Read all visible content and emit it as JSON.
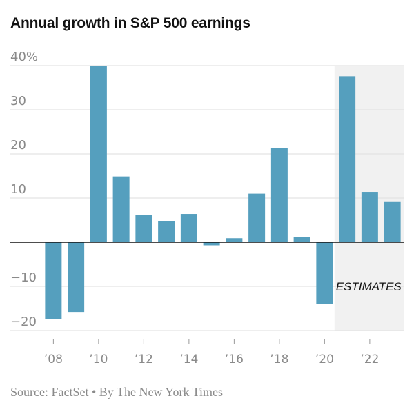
{
  "title": "Annual growth in S&P 500 earnings",
  "source": "Source: FactSet • By The New York Times",
  "chart_data": {
    "type": "bar",
    "title": "Annual growth in S&P 500 earnings",
    "xlabel": "",
    "ylabel": "",
    "ylim": [
      -20,
      40
    ],
    "y_ticks": [
      {
        "value": 40,
        "label": "40%"
      },
      {
        "value": 30,
        "label": "30"
      },
      {
        "value": 20,
        "label": "20"
      },
      {
        "value": 10,
        "label": "10"
      },
      {
        "value": -10,
        "label": "−10"
      },
      {
        "value": -20,
        "label": "−20"
      }
    ],
    "categories": [
      "2008",
      "2009",
      "2010",
      "2011",
      "2012",
      "2013",
      "2014",
      "2015",
      "2016",
      "2017",
      "2018",
      "2019",
      "2020",
      "2021",
      "2022",
      "2023"
    ],
    "x_tick_labels": [
      {
        "category": "2008",
        "label": "’08"
      },
      {
        "category": "2010",
        "label": "’10"
      },
      {
        "category": "2012",
        "label": "’12"
      },
      {
        "category": "2014",
        "label": "’14"
      },
      {
        "category": "2016",
        "label": "’16"
      },
      {
        "category": "2018",
        "label": "’18"
      },
      {
        "category": "2020",
        "label": "’20"
      },
      {
        "category": "2022",
        "label": "’22"
      }
    ],
    "values": [
      -17.5,
      -15.8,
      40,
      14.9,
      6.1,
      4.8,
      6.4,
      -0.7,
      0.9,
      11,
      21.3,
      1.1,
      -14,
      37.6,
      11.4,
      9.1
    ],
    "grid": true,
    "bar_color": "#559fbe",
    "estimates": {
      "from": "2021",
      "to": "2023",
      "label": "ESTIMATES",
      "shade_color": "#f1f1f1"
    }
  }
}
